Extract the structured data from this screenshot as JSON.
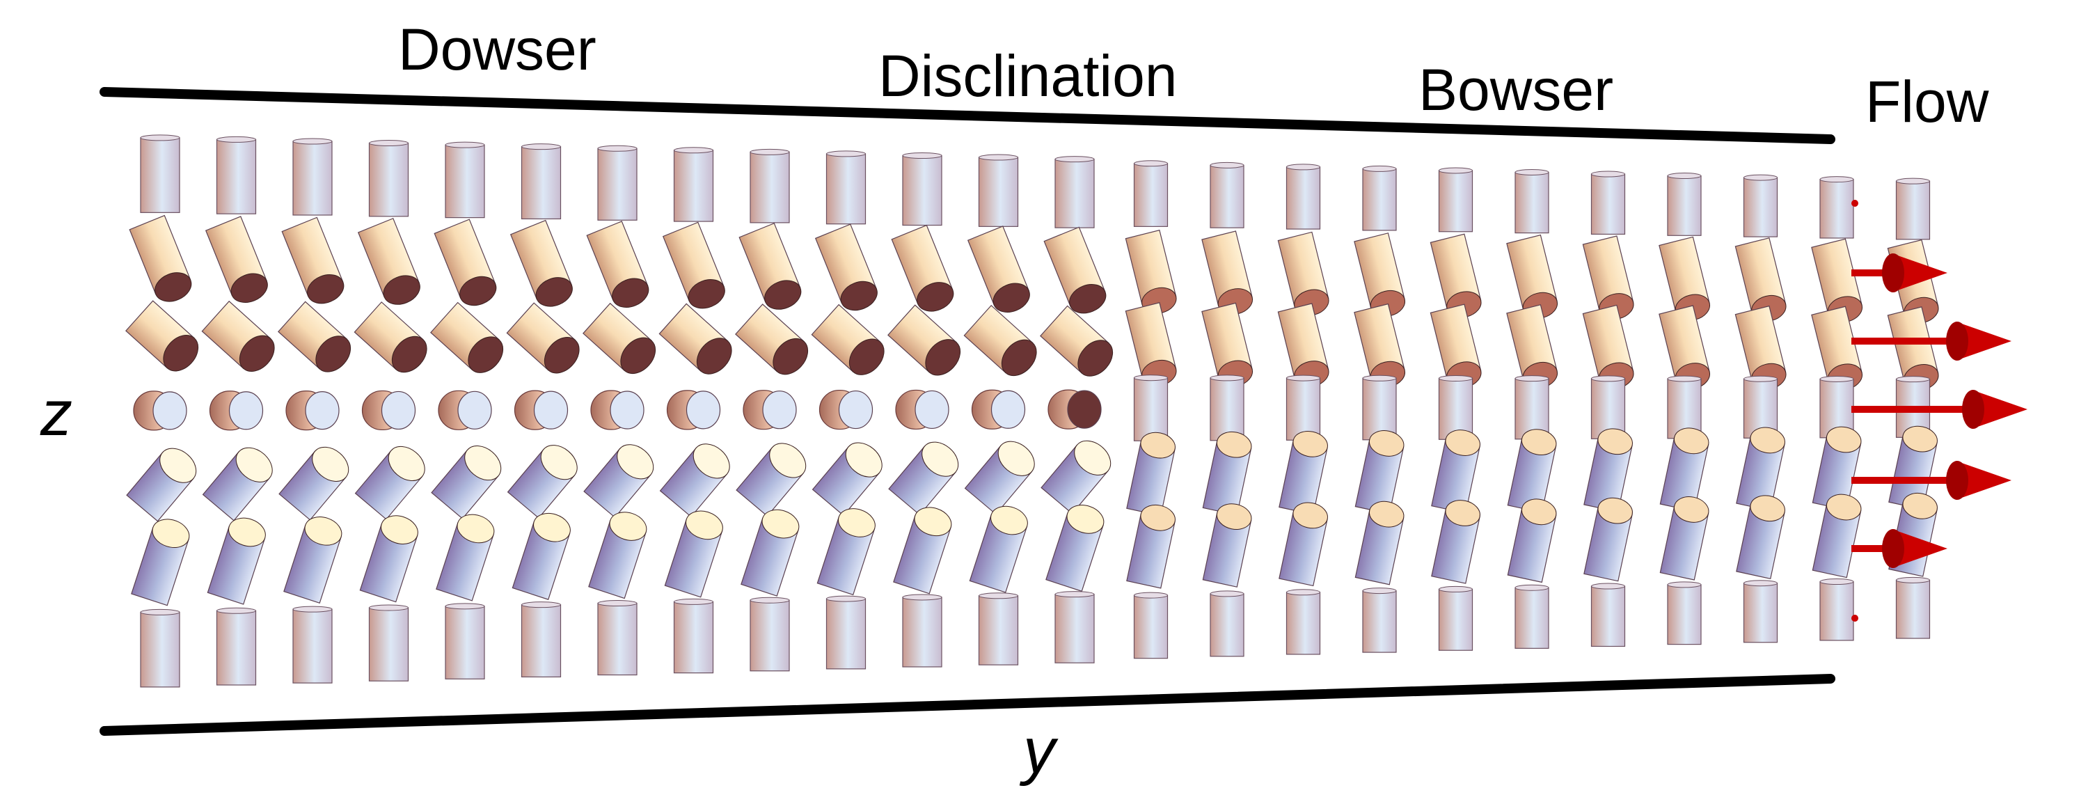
{
  "labels": {
    "dowser": "Dowser",
    "disclination": "Disclination",
    "bowser": "Bowser",
    "flow": "Flow",
    "z_axis": "z",
    "y_axis": "y"
  },
  "colors": {
    "wall": "#000000",
    "flow_arrow": "#cc0000",
    "cylinder_pink": "#c99a90",
    "cylinder_blue": "#dde8f6",
    "cylinder_top_warm": "#f6dcb4",
    "cylinder_cap_dark": "#6a3434",
    "cylinder_side_blue": "#8f90c4",
    "cylinder_cap_light": "#fff8e0"
  },
  "director_field": {
    "columns": 24,
    "rows": 7,
    "disclination_after_column": 13,
    "dowser_row_states": [
      "vertical",
      "tilt-up",
      "tilt-strong-up",
      "end-on",
      "tilt-strong-down",
      "tilt-down",
      "vertical"
    ],
    "bowser_row_states": [
      "vertical",
      "tilt-slight-up",
      "tilt-slight-up",
      "vertical",
      "tilt-slight-down",
      "tilt-slight-down",
      "vertical"
    ]
  },
  "flow_profile": {
    "relative_velocity": [
      0.0,
      0.6,
      1.0,
      1.1,
      1.0,
      0.6,
      0.0
    ]
  }
}
